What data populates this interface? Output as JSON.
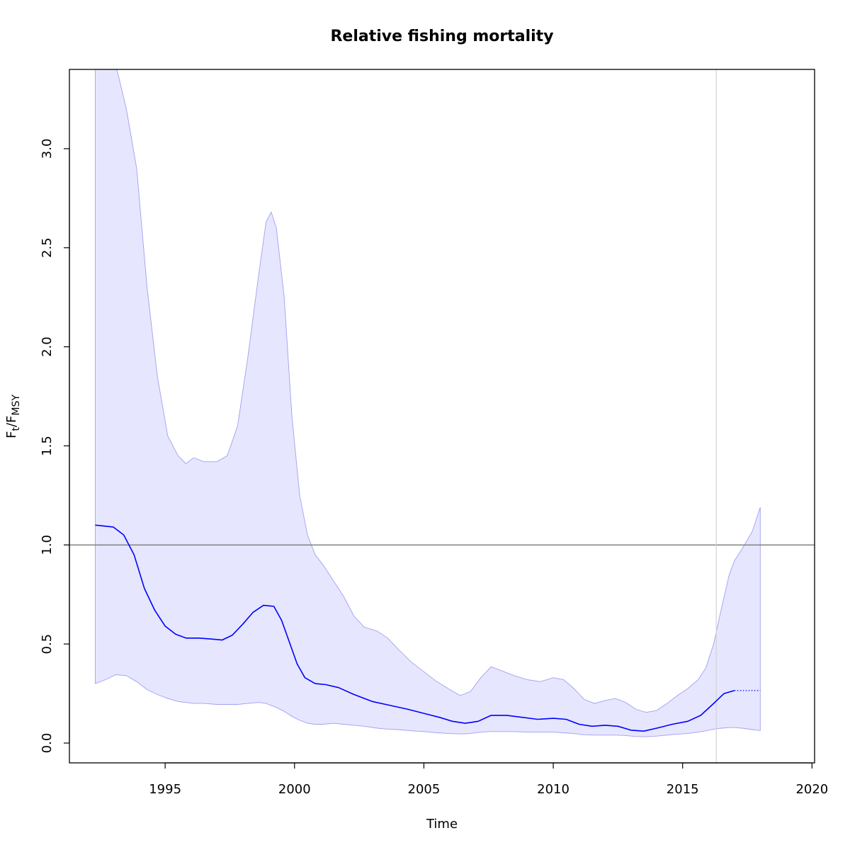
{
  "chart_data": {
    "type": "line",
    "title": "Relative fishing mortality",
    "xlabel": "Time",
    "ylabel": {
      "base": "F",
      "sub1": "t",
      "sep": "/F",
      "sub2": "MSY"
    },
    "xlim": [
      1991.3,
      2020.1
    ],
    "ylim": [
      -0.1,
      3.4
    ],
    "x_ticks": [
      1995,
      2000,
      2005,
      2010,
      2015,
      2020
    ],
    "x_tick_labels": [
      "1995",
      "2000",
      "2005",
      "2010",
      "2015",
      "2020"
    ],
    "y_ticks": [
      0.0,
      0.5,
      1.0,
      1.5,
      2.0,
      2.5,
      3.0
    ],
    "y_tick_labels": [
      "0.0",
      "0.5",
      "1.0",
      "1.5",
      "2.0",
      "2.5",
      "3.0"
    ],
    "reference_line": {
      "y": 1.0,
      "color": "#808080"
    },
    "vertical_line": {
      "x": 2016.3,
      "color": "#d3d3d3"
    },
    "series": [
      {
        "role": "estimate",
        "color": "#0000ff",
        "style": "solid",
        "x": [
          1992.3,
          1993.0,
          1993.4,
          1993.8,
          1994.2,
          1994.6,
          1995.0,
          1995.4,
          1995.8,
          1996.3,
          1996.8,
          1997.2,
          1997.6,
          1998.0,
          1998.4,
          1998.8,
          1999.2,
          1999.5,
          1999.8,
          2000.1,
          2000.4,
          2000.8,
          2001.2,
          2001.7,
          2002.3,
          2003.0,
          2003.7,
          2004.4,
          2005.0,
          2005.6,
          2006.1,
          2006.6,
          2007.1,
          2007.6,
          2008.2,
          2008.8,
          2009.4,
          2010.0,
          2010.5,
          2011.0,
          2011.5,
          2012.0,
          2012.5,
          2013.0,
          2013.5,
          2014.0,
          2014.6,
          2015.2,
          2015.7,
          2016.2,
          2016.6,
          2017.0
        ],
        "y": [
          1.1,
          1.09,
          1.05,
          0.95,
          0.78,
          0.67,
          0.59,
          0.55,
          0.53,
          0.53,
          0.525,
          0.52,
          0.545,
          0.6,
          0.66,
          0.695,
          0.69,
          0.62,
          0.51,
          0.4,
          0.33,
          0.3,
          0.295,
          0.28,
          0.245,
          0.21,
          0.19,
          0.17,
          0.15,
          0.13,
          0.11,
          0.1,
          0.11,
          0.14,
          0.14,
          0.13,
          0.12,
          0.125,
          0.12,
          0.095,
          0.085,
          0.09,
          0.085,
          0.065,
          0.06,
          0.075,
          0.095,
          0.11,
          0.14,
          0.2,
          0.25,
          0.265
        ]
      },
      {
        "role": "forecast",
        "color": "#0000ff",
        "style": "dotted",
        "x": [
          2017.0,
          2018.0
        ],
        "y": [
          0.265,
          0.265
        ]
      }
    ],
    "band": {
      "fill": "#e6e6ff",
      "stroke": "#a0a0f0",
      "x": [
        1992.3,
        1992.7,
        1993.1,
        1993.5,
        1993.9,
        1994.3,
        1994.7,
        1995.1,
        1995.5,
        1995.8,
        1996.1,
        1996.5,
        1997.0,
        1997.4,
        1997.8,
        1998.2,
        1998.6,
        1998.9,
        1999.1,
        1999.3,
        1999.6,
        1999.9,
        2000.2,
        2000.5,
        2000.8,
        2001.1,
        2001.5,
        2001.9,
        2002.3,
        2002.7,
        2003.2,
        2003.6,
        2004.0,
        2004.5,
        2005.0,
        2005.5,
        2006.0,
        2006.4,
        2006.8,
        2007.2,
        2007.6,
        2008.0,
        2008.5,
        2009.0,
        2009.5,
        2010.0,
        2010.4,
        2010.8,
        2011.2,
        2011.6,
        2012.0,
        2012.4,
        2012.8,
        2013.2,
        2013.6,
        2014.0,
        2014.4,
        2014.8,
        2015.2,
        2015.6,
        2015.9,
        2016.2,
        2016.5,
        2016.8,
        2017.0,
        2017.3,
        2017.7,
        2018.0
      ],
      "upper": [
        3.42,
        3.42,
        3.42,
        3.2,
        2.9,
        2.3,
        1.85,
        1.55,
        1.45,
        1.41,
        1.44,
        1.42,
        1.42,
        1.45,
        1.6,
        1.95,
        2.35,
        2.63,
        2.68,
        2.6,
        2.25,
        1.65,
        1.25,
        1.05,
        0.95,
        0.9,
        0.82,
        0.74,
        0.64,
        0.585,
        0.565,
        0.53,
        0.475,
        0.41,
        0.36,
        0.31,
        0.27,
        0.24,
        0.26,
        0.33,
        0.385,
        0.365,
        0.34,
        0.32,
        0.31,
        0.33,
        0.32,
        0.275,
        0.22,
        0.2,
        0.215,
        0.225,
        0.205,
        0.17,
        0.155,
        0.165,
        0.2,
        0.24,
        0.275,
        0.32,
        0.38,
        0.5,
        0.68,
        0.85,
        0.92,
        0.98,
        1.07,
        1.19
      ],
      "lower": [
        0.3,
        0.32,
        0.345,
        0.34,
        0.31,
        0.27,
        0.245,
        0.225,
        0.21,
        0.205,
        0.2,
        0.2,
        0.195,
        0.195,
        0.195,
        0.2,
        0.205,
        0.2,
        0.19,
        0.18,
        0.16,
        0.135,
        0.115,
        0.1,
        0.095,
        0.095,
        0.1,
        0.095,
        0.09,
        0.085,
        0.075,
        0.07,
        0.068,
        0.062,
        0.058,
        0.052,
        0.048,
        0.046,
        0.048,
        0.055,
        0.058,
        0.058,
        0.058,
        0.055,
        0.055,
        0.055,
        0.052,
        0.048,
        0.042,
        0.04,
        0.04,
        0.04,
        0.038,
        0.033,
        0.032,
        0.035,
        0.04,
        0.045,
        0.048,
        0.055,
        0.062,
        0.07,
        0.075,
        0.078,
        0.078,
        0.075,
        0.068,
        0.063
      ]
    }
  }
}
